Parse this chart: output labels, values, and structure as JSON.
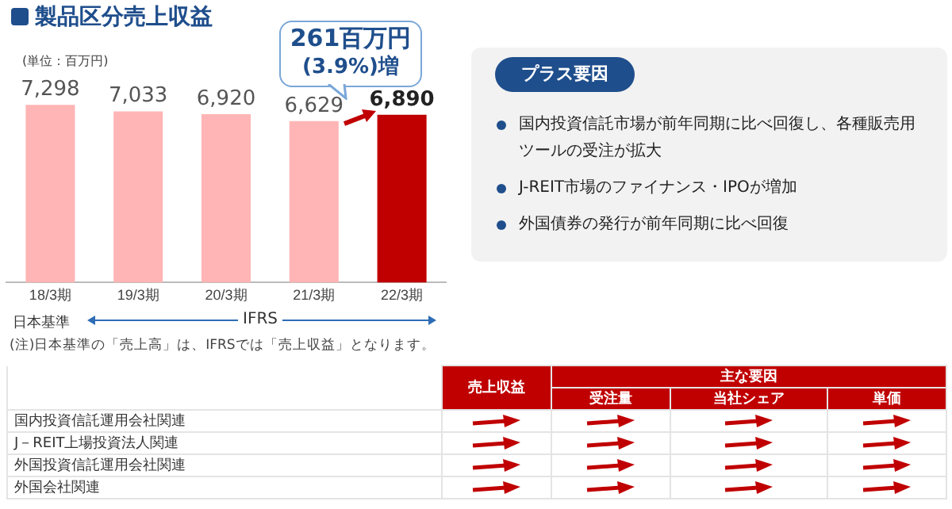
{
  "chart_data": {
    "type": "bar",
    "title": "製品区分売上収益",
    "categories": [
      "18/3期",
      "19/3期",
      "20/3期",
      "21/3期",
      "22/3期"
    ],
    "values": [
      7298,
      7033,
      6920,
      6629,
      6890
    ],
    "colors": [
      "#ffb5b5",
      "#ffb5b5",
      "#ffb5b5",
      "#ffb5b5",
      "#c00000"
    ],
    "value_labels": [
      "7,298",
      "7,033",
      "6,920",
      "6,629",
      "6,890"
    ],
    "grid": false,
    "legend": false,
    "tick_labels": "x",
    "annotations": [
      "(単位：百万円)",
      "261百万円",
      "(3.9%)増",
      "日本基準",
      "IFRS",
      "(注)日本基準の「売上高」は、IFRSでは「売上収益」となります。",
      "プラス要因",
      "国内投資信託市場が前年同期に比べ回復し、各種販売用ツールの受注が拡大",
      "J-REIT市場のファイナンス・IPOが増加",
      "外国債券の発行が前年同期に比べ回復",
      "売上収益",
      "主な要因",
      "受注量",
      "当社シェア",
      "単価",
      "国内投資信託運用会社関連",
      "J－REIT上場投資法人関連",
      "外国投資信託運用会社関連",
      "外国会社関連"
    ]
  }
}
